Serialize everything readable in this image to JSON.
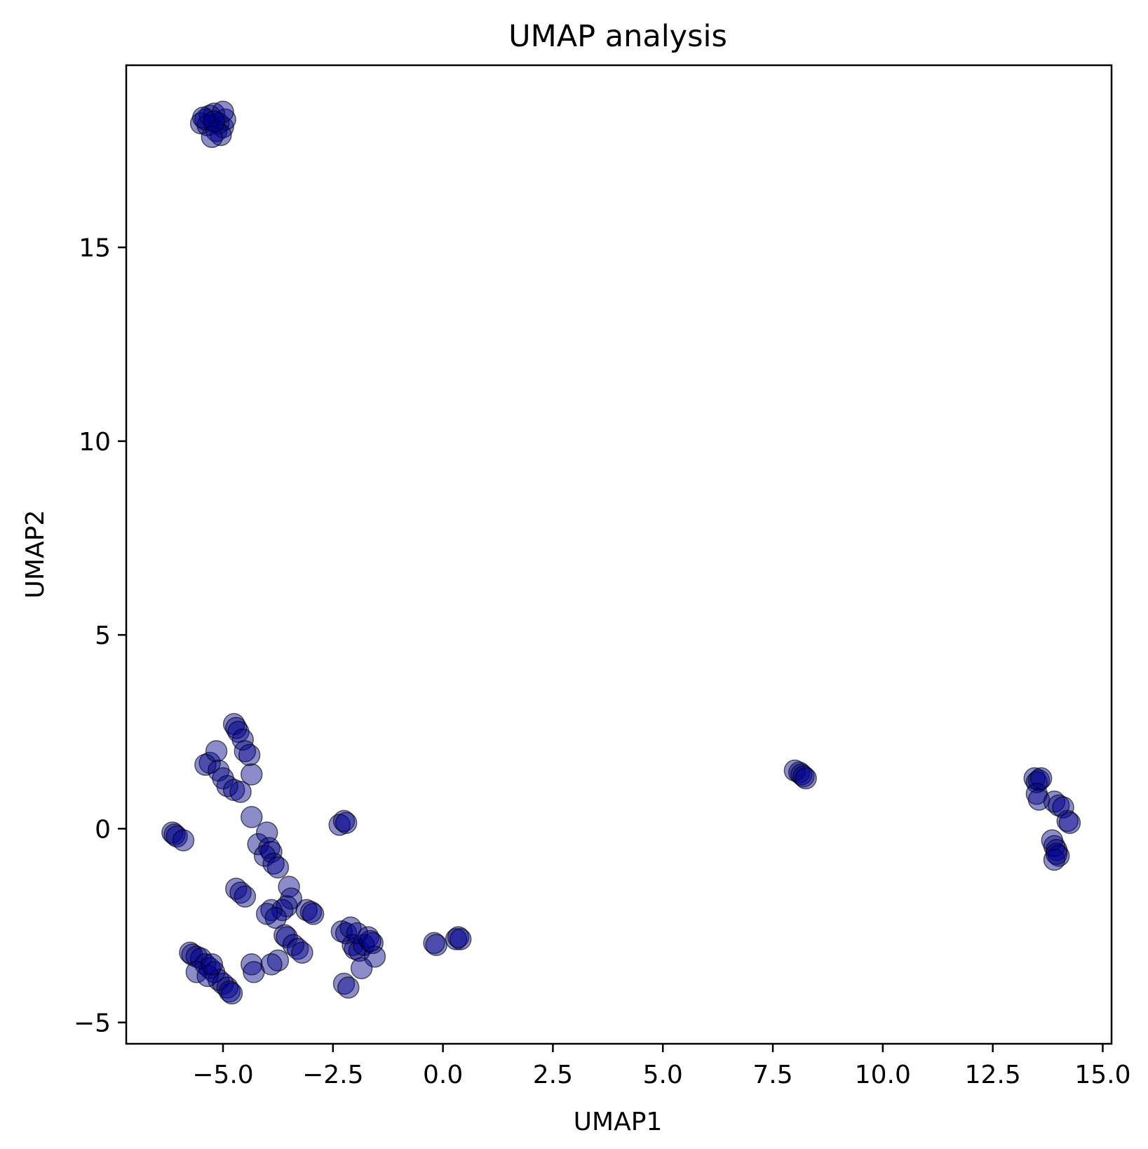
{
  "chart_data": {
    "type": "scatter",
    "title": "UMAP analysis",
    "xlabel": "UMAP1",
    "ylabel": "UMAP2",
    "xlim": [
      -7.2,
      15.2
    ],
    "ylim": [
      -5.55,
      19.7
    ],
    "x_ticks": [
      -5.0,
      -2.5,
      0.0,
      2.5,
      5.0,
      7.5,
      10.0,
      12.5,
      15.0
    ],
    "x_tick_labels": [
      "−5.0",
      "−2.5",
      "0.0",
      "2.5",
      "5.0",
      "7.5",
      "10.0",
      "12.5",
      "15.0"
    ],
    "y_ticks": [
      -5,
      0,
      5,
      10,
      15
    ],
    "y_tick_labels": [
      "−5",
      "0",
      "5",
      "10",
      "15"
    ],
    "grid": false,
    "marker_color": "#00008b",
    "marker_edge_color": "#000000",
    "marker_alpha": 0.45,
    "series": [
      {
        "x": [
          -5.5,
          -5.4,
          -5.3,
          -5.2,
          -5.1,
          -5.0,
          -4.95,
          -5.35,
          -5.15,
          -5.05,
          -5.25,
          -5.45,
          -5.0,
          -5.2,
          -4.75,
          -4.7,
          -4.65,
          -4.55,
          -4.5,
          -4.4,
          -4.35,
          -5.3,
          -5.4,
          -5.1,
          -5.0,
          -4.9,
          -4.75,
          -4.6,
          -5.15,
          -6.15,
          -6.1,
          -6.05,
          -5.9,
          -2.35,
          -2.25,
          -2.2,
          -4.35,
          -4.2,
          -4.0,
          -3.95,
          -4.05,
          -3.9,
          -3.85,
          -3.75,
          -4.7,
          -4.6,
          -4.5,
          -3.5,
          -3.45,
          -3.55,
          -3.65,
          -3.9,
          -4.0,
          -3.8,
          -3.6,
          -3.55,
          -3.4,
          -3.3,
          -3.2,
          -3.1,
          -3.0,
          -2.95,
          -3.75,
          -3.9,
          -5.75,
          -5.7,
          -5.6,
          -5.5,
          -5.4,
          -5.3,
          -5.2,
          -5.1,
          -5.0,
          -4.9,
          -4.85,
          -4.8,
          -5.6,
          -5.35,
          -5.25,
          -4.35,
          -4.3,
          -2.3,
          -2.2,
          -2.1,
          -2.05,
          -2.0,
          -1.9,
          -1.8,
          -1.7,
          -1.6,
          -1.55,
          -1.85,
          -1.95,
          -1.65,
          -2.25,
          -2.15,
          -0.2,
          -0.15,
          0.3,
          0.35,
          0.4,
          8.0,
          8.1,
          8.15,
          8.2,
          8.25,
          13.45,
          13.5,
          13.55,
          13.6,
          13.5,
          13.55,
          13.9,
          14.0,
          14.1,
          14.2,
          14.25,
          13.85,
          13.9,
          13.95,
          14.0,
          13.9,
          13.95
        ],
        "y": [
          18.2,
          18.3,
          18.4,
          18.45,
          18.2,
          18.1,
          18.3,
          18.15,
          18.0,
          17.9,
          17.85,
          18.35,
          18.5,
          18.25,
          2.7,
          2.6,
          2.5,
          2.3,
          2.0,
          1.9,
          1.4,
          1.7,
          1.65,
          1.5,
          1.3,
          1.1,
          1.0,
          0.95,
          2.0,
          -0.1,
          -0.15,
          -0.2,
          -0.3,
          0.1,
          0.2,
          0.15,
          0.3,
          -0.4,
          -0.1,
          -0.5,
          -0.7,
          -0.6,
          -0.9,
          -1.0,
          -1.55,
          -1.65,
          -1.75,
          -1.5,
          -1.8,
          -2.0,
          -2.1,
          -2.1,
          -2.2,
          -2.3,
          -2.75,
          -2.8,
          -3.0,
          -3.1,
          -3.2,
          -2.1,
          -2.15,
          -2.2,
          -3.4,
          -3.5,
          -3.2,
          -3.25,
          -3.3,
          -3.35,
          -3.5,
          -3.6,
          -3.7,
          -3.9,
          -4.0,
          -4.1,
          -4.2,
          -4.25,
          -3.7,
          -3.8,
          -3.5,
          -3.5,
          -3.7,
          -2.65,
          -2.7,
          -2.55,
          -3.0,
          -3.1,
          -3.15,
          -3.0,
          -2.8,
          -2.95,
          -3.3,
          -3.6,
          -2.7,
          -2.9,
          -4.0,
          -4.1,
          -2.95,
          -3.0,
          -2.85,
          -2.8,
          -2.85,
          1.5,
          1.45,
          1.4,
          1.35,
          1.3,
          1.3,
          1.2,
          1.25,
          1.3,
          0.9,
          0.75,
          0.7,
          0.6,
          0.55,
          0.2,
          0.15,
          -0.3,
          -0.45,
          -0.55,
          -0.7,
          -0.8,
          -0.65
        ]
      }
    ]
  }
}
